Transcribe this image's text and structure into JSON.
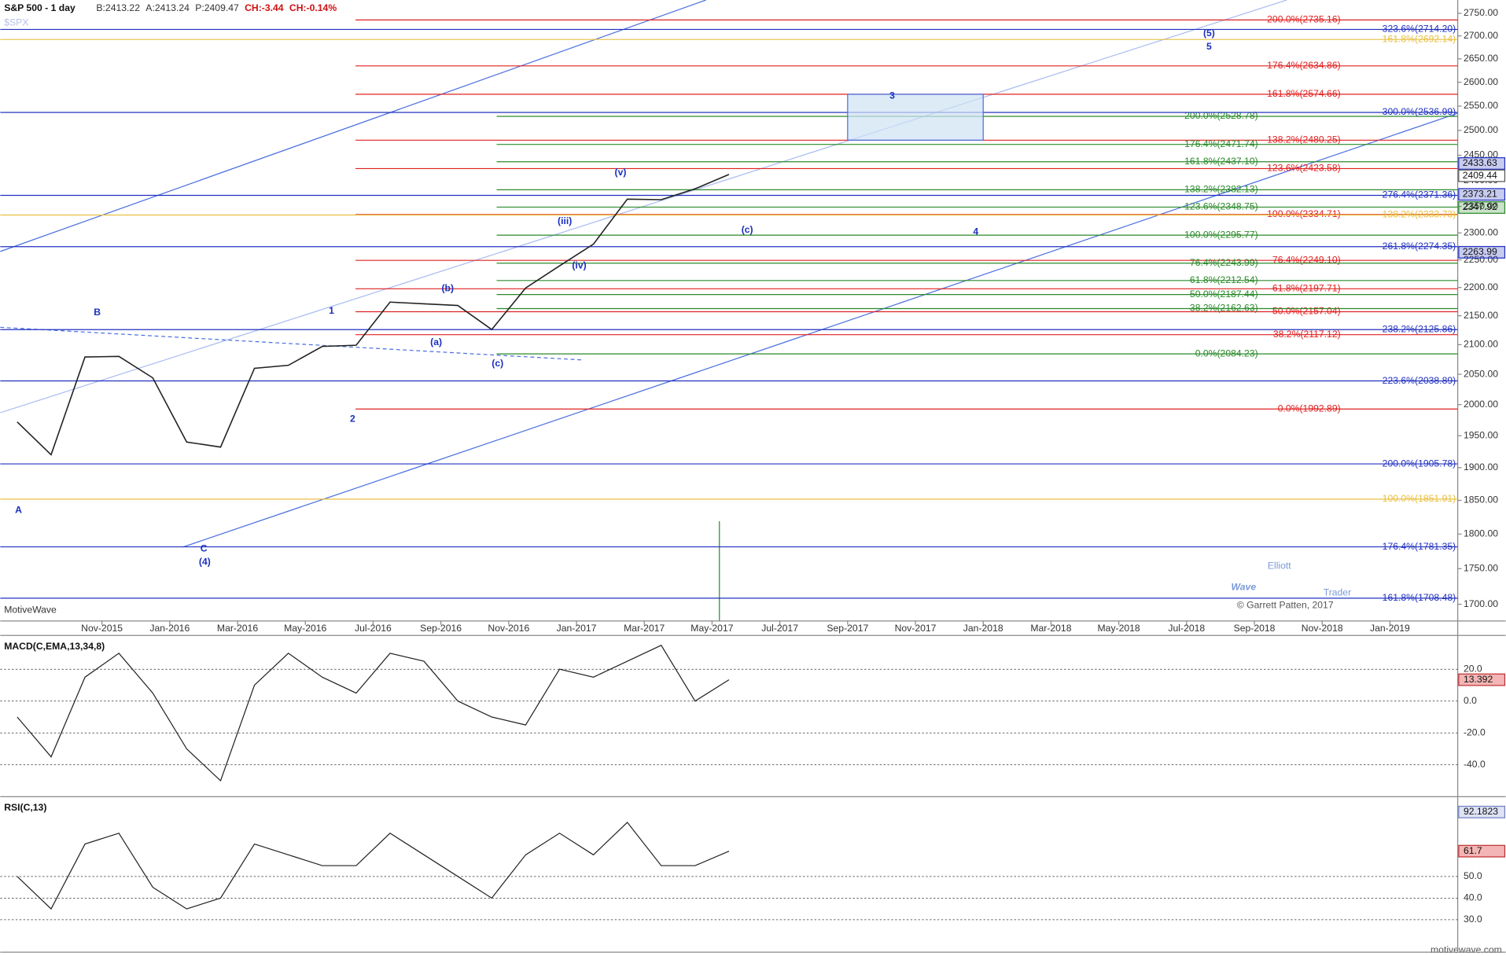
{
  "chart_data": [
    {
      "type": "line",
      "title": "S&P 500 - 1 day",
      "symbol": "$SPX",
      "header": [
        "B:2413.22",
        "A:2413.24",
        "P:2409.47",
        "CH:-3.44",
        "CH:-0.14%"
      ],
      "color": "#222222",
      "log_scale": true,
      "x": [
        "2015-08",
        "2015-09",
        "2015-10",
        "2015-11",
        "2015-12",
        "2016-01",
        "2016-02",
        "2016-03",
        "2016-04",
        "2016-05",
        "2016-06",
        "2016-07",
        "2016-08",
        "2016-09",
        "2016-10",
        "2016-11",
        "2016-12",
        "2017-01",
        "2017-02",
        "2017-03",
        "2017-04",
        "2017-05"
      ],
      "values": [
        1972,
        1920,
        2079,
        2080,
        2044,
        1940,
        1932,
        2060,
        2065,
        2097,
        2099,
        2174,
        2171,
        2168,
        2126,
        2199,
        2239,
        2279,
        2364,
        2363,
        2384,
        2412
      ],
      "xlim": [
        "2015-08",
        "2019-03"
      ],
      "xticks": [
        {
          "value": "2015-11",
          "label": "Nov-2015"
        },
        {
          "value": "2016-01",
          "label": "Jan-2016"
        },
        {
          "value": "2016-03",
          "label": "Mar-2016"
        },
        {
          "value": "2016-05",
          "label": "May-2016"
        },
        {
          "value": "2016-07",
          "label": "Jul-2016"
        },
        {
          "value": "2016-09",
          "label": "Sep-2016"
        },
        {
          "value": "2016-11",
          "label": "Nov-2016"
        },
        {
          "value": "2017-01",
          "label": "Jan-2017"
        },
        {
          "value": "2017-03",
          "label": "Mar-2017"
        },
        {
          "value": "2017-05",
          "label": "May-2017"
        },
        {
          "value": "2017-07",
          "label": "Jul-2017"
        },
        {
          "value": "2017-09",
          "label": "Sep-2017"
        },
        {
          "value": "2017-11",
          "label": "Nov-2017"
        },
        {
          "value": "2018-01",
          "label": "Jan-2018"
        },
        {
          "value": "2018-03",
          "label": "Mar-2018"
        },
        {
          "value": "2018-05",
          "label": "May-2018"
        },
        {
          "value": "2018-07",
          "label": "Jul-2018"
        },
        {
          "value": "2018-09",
          "label": "Sep-2018"
        },
        {
          "value": "2018-11",
          "label": "Nov-2018"
        },
        {
          "value": "2019-01",
          "label": "Jan-2019"
        }
      ],
      "ylim": [
        1677,
        2780
      ],
      "yticks": [
        {
          "value": 1700,
          "label": "1700.00"
        },
        {
          "value": 1750,
          "label": "1750.00"
        },
        {
          "value": 1800,
          "label": "1800.00"
        },
        {
          "value": 1850,
          "label": "1850.00"
        },
        {
          "value": 1900,
          "label": "1900.00"
        },
        {
          "value": 1950,
          "label": "1950.00"
        },
        {
          "value": 2000,
          "label": "2000.00"
        },
        {
          "value": 2050,
          "label": "2050.00"
        },
        {
          "value": 2100,
          "label": "2100.00"
        },
        {
          "value": 2150,
          "label": "2150.00"
        },
        {
          "value": 2200,
          "label": "2200.00"
        },
        {
          "value": 2250,
          "label": "2250.00"
        },
        {
          "value": 2300,
          "label": "2300.00"
        },
        {
          "value": 2350,
          "label": "2350.00"
        },
        {
          "value": 2400,
          "label": "2400.00"
        },
        {
          "value": 2450,
          "label": "2450.00"
        },
        {
          "value": 2500,
          "label": "2500.00"
        },
        {
          "value": 2550,
          "label": "2550.00"
        },
        {
          "value": 2600,
          "label": "2600.00"
        },
        {
          "value": 2650,
          "label": "2650.00"
        },
        {
          "value": 2700,
          "label": "2700.00"
        },
        {
          "value": 2750,
          "label": "2750.00"
        }
      ],
      "fib_levels": [
        {
          "color": "#e02020",
          "levels": [
            {
              "value": 2735.16,
              "label": "200.0%(2735.16)"
            },
            {
              "value": 2634.86,
              "label": "176.4%(2634.86)"
            },
            {
              "value": 2574.66,
              "label": "161.8%(2574.66)"
            },
            {
              "value": 2480.25,
              "label": "138.2%(2480.25)"
            },
            {
              "value": 2423.58,
              "label": "123.6%(2423.58)"
            },
            {
              "value": 2334.71,
              "label": "100.0%(2334.71)"
            },
            {
              "value": 2249.1,
              "label": "76.4%(2249.10)"
            },
            {
              "value": 2197.71,
              "label": "61.8%(2197.71)"
            },
            {
              "value": 2157.04,
              "label": "50.0%(2157.04)"
            },
            {
              "value": 2117.12,
              "label": "38.2%(2117.12)"
            },
            {
              "value": 1992.89,
              "label": "0.0%(1992.89)"
            }
          ]
        },
        {
          "color": "#2a8a2a",
          "levels": [
            {
              "value": 2528.78,
              "label": "200.0%(2528.78)"
            },
            {
              "value": 2471.74,
              "label": "176.4%(2471.74)"
            },
            {
              "value": 2437.1,
              "label": "161.8%(2437.10)"
            },
            {
              "value": 2382.13,
              "label": "138.2%(2382.13)"
            },
            {
              "value": 2348.75,
              "label": "123.6%(2348.75)"
            },
            {
              "value": 2295.77,
              "label": "100.0%(2295.77)"
            },
            {
              "value": 2243.99,
              "label": "76.4%(2243.99)"
            },
            {
              "value": 2212.54,
              "label": "61.8%(2212.54)"
            },
            {
              "value": 2187.44,
              "label": "50.0%(2187.44)"
            },
            {
              "value": 2162.63,
              "label": "38.2%(2162.63)"
            },
            {
              "value": 2084.23,
              "label": "0.0%(2084.23)"
            }
          ]
        },
        {
          "color": "#2030c0",
          "levels": [
            {
              "value": 2714.2,
              "label": "323.6%(2714.20)"
            },
            {
              "value": 2536.99,
              "label": "300.0%(2536.99)"
            },
            {
              "value": 2371.36,
              "label": "276.4%(2371.36)"
            },
            {
              "value": 2274.35,
              "label": "261.8%(2274.35)"
            },
            {
              "value": 2125.86,
              "label": "238.2%(2125.86)"
            },
            {
              "value": 2038.89,
              "label": "223.6%(2038.89)"
            },
            {
              "value": 1905.78,
              "label": "200.0%(1905.78)"
            },
            {
              "value": 1781.35,
              "label": "176.4%(1781.35)"
            },
            {
              "value": 1708.48,
              "label": "161.8%(1708.48)"
            }
          ]
        },
        {
          "color": "#e8c040",
          "levels": [
            {
              "value": 2692.14,
              "label": "161.8%(2692.14)"
            },
            {
              "value": 2333.73,
              "label": "138.2%(2333.73)"
            },
            {
              "value": 1851.91,
              "label": "100.0%(1851.91)"
            }
          ]
        }
      ],
      "price_badges": [
        {
          "value": 2433.63,
          "label": "2433.63",
          "color": "#2030c0"
        },
        {
          "value": 2409.44,
          "label": "2409.44",
          "color": "#555555"
        },
        {
          "value": 2373.21,
          "label": "2373.21",
          "color": "#2030c0"
        },
        {
          "value": 2347.92,
          "label": "2347.92",
          "color": "#2a8a2a"
        },
        {
          "value": 2263.99,
          "label": "2263.99",
          "color": "#2030c0"
        }
      ],
      "annotations": [
        "A",
        "B",
        "C",
        "(4)",
        "1",
        "2",
        "3",
        "4",
        "(5)",
        "5",
        "(a)",
        "(b)",
        "(c)",
        "(iv)",
        "(iii)",
        "(v)",
        "(c)"
      ]
    },
    {
      "type": "line",
      "title": "MACD(C,EMA,13,34,8)",
      "color": "#222222",
      "values": [
        -10,
        -35,
        15,
        30,
        5,
        -30,
        -50,
        10,
        30,
        15,
        5,
        30,
        25,
        0,
        -10,
        -15,
        20,
        15,
        25,
        35,
        0,
        13.392
      ],
      "value_labels": [
        null,
        null,
        null,
        null,
        null,
        null,
        null,
        null,
        null,
        null,
        null,
        null,
        null,
        null,
        null,
        null,
        null,
        null,
        null,
        null,
        null,
        "13.392"
      ],
      "ylim": [
        -60,
        40
      ],
      "yticks": [
        {
          "value": 20,
          "label": "20.0"
        },
        {
          "value": 0,
          "label": "0.0"
        },
        {
          "value": -20,
          "label": "-20.0"
        },
        {
          "value": -40,
          "label": "-40.0"
        }
      ]
    },
    {
      "type": "line",
      "title": "RSI(C,13)",
      "color": "#222222",
      "values": [
        50,
        35,
        65,
        70,
        45,
        35,
        40,
        65,
        60,
        55,
        55,
        70,
        60,
        50,
        40,
        60,
        70,
        60,
        75,
        55,
        55,
        61.7
      ],
      "value_labels": [
        null,
        null,
        null,
        null,
        null,
        null,
        null,
        null,
        null,
        null,
        null,
        null,
        null,
        null,
        null,
        null,
        null,
        null,
        null,
        null,
        null,
        "61.7"
      ],
      "top_badge": "92.1823",
      "ylim": [
        15,
        86
      ],
      "yticks": [
        {
          "value": 30,
          "label": "30.0"
        },
        {
          "value": 40,
          "label": "40.0"
        },
        {
          "value": 50,
          "label": "50.0"
        }
      ]
    }
  ],
  "watermark": {
    "brand1": "Elliott",
    "brand2": "Wave",
    "brand3": "Trader",
    "credit": "© Garrett Patten, 2017"
  },
  "source": "MotiveWave",
  "footer": "motivewave.com"
}
